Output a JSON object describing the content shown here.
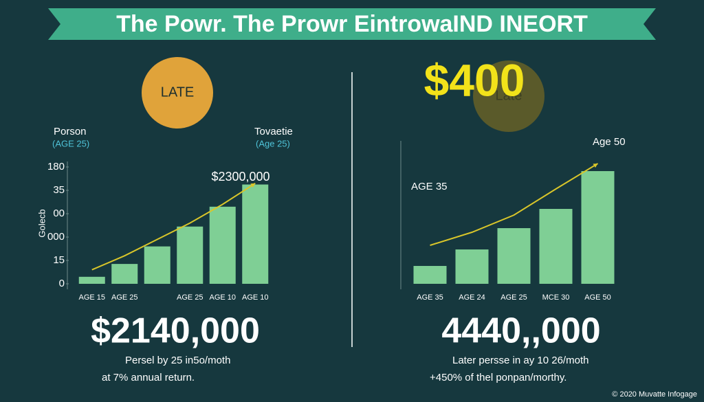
{
  "banner": {
    "title": "The Powr. The Prowr EintrowaIND INEORT"
  },
  "chart_data": [
    {
      "type": "bar",
      "color": "#7fcf95",
      "trend_color": "#d9c62a",
      "badge": "LATE",
      "y_label": "Golecb",
      "annotations": [
        "Porson",
        "(AGE 25)",
        "Tovaetie",
        "(Age 25)",
        "$2300,000"
      ],
      "categories": [
        "AGE 15",
        "AGE 25",
        null,
        "AGE 25",
        "AGE 10",
        "AGE 10"
      ],
      "values": [
        0.3,
        0.85,
        1.6,
        2.45,
        3.3,
        4.25
      ],
      "trend": [
        0.6,
        1.2,
        1.9,
        2.6,
        3.4,
        4.3
      ],
      "ylim": [
        0,
        5
      ],
      "yticks": [
        0,
        {
          "value": 1,
          "label": "15"
        },
        {
          "value": 2,
          "label": "000"
        },
        {
          "value": 3,
          "label": "00"
        },
        {
          "value": 4,
          "label": "35"
        },
        {
          "value": 5,
          "label": "180"
        }
      ],
      "summary": "$2140,000",
      "notes": [
        "Persel by 25 in5o/moth",
        "at 7% annual return."
      ]
    },
    {
      "type": "bar",
      "color": "#7fcf95",
      "trend_color": "#d9c62a",
      "badge": "Late",
      "headline": "$400",
      "annotations": [
        "AGE 35",
        "Age 50"
      ],
      "categories": [
        "AGE 35",
        "AGE 24",
        "AGE 25",
        "MCE 30",
        "AGE 50"
      ],
      "values": [
        26,
        50,
        81,
        109,
        164
      ],
      "trend": [
        56,
        75,
        100,
        138,
        175
      ],
      "ylim": [
        0,
        200
      ],
      "summary": "4440,,000",
      "notes": [
        "Later persse in ay 10 26/moth",
        "+450% of thel ponpan/morthy."
      ]
    }
  ],
  "footer": "© 2020 Muvatte Infogage"
}
